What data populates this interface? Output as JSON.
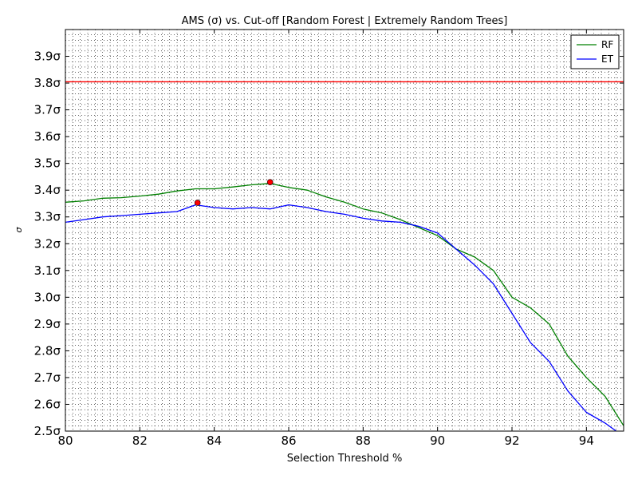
{
  "chart_data": {
    "type": "line",
    "title": "AMS (σ) vs. Cut-off [Random Forest | Extremely Random Trees]",
    "xlabel": "Selection Threshold %",
    "ylabel": "σ",
    "xlim": [
      80,
      95
    ],
    "ylim": [
      2.5,
      4.0
    ],
    "x_ticks": [
      80,
      82,
      84,
      86,
      88,
      90,
      92,
      94
    ],
    "x_tick_labels": [
      "80",
      "82",
      "84",
      "86",
      "88",
      "90",
      "92",
      "94"
    ],
    "y_ticks": [
      2.5,
      2.6,
      2.7,
      2.8,
      2.9,
      3.0,
      3.1,
      3.2,
      3.3,
      3.4,
      3.5,
      3.6,
      3.7,
      3.8,
      3.9
    ],
    "y_tick_labels": [
      "2.5σ",
      "2.6σ",
      "2.7σ",
      "2.8σ",
      "2.9σ",
      "3.0σ",
      "3.1σ",
      "3.2σ",
      "3.3σ",
      "3.4σ",
      "3.5σ",
      "3.6σ",
      "3.7σ",
      "3.8σ",
      "3.9σ"
    ],
    "grid": true,
    "legend_position": "top-right",
    "reference_line": {
      "y": 3.805,
      "color": "#ff0000"
    },
    "series": [
      {
        "name": "RF",
        "color": "#008000",
        "x": [
          80.0,
          80.5,
          81.0,
          81.5,
          82.0,
          82.5,
          83.0,
          83.5,
          84.0,
          84.5,
          85.0,
          85.5,
          86.0,
          86.5,
          87.0,
          87.5,
          88.0,
          88.5,
          89.0,
          89.5,
          90.0,
          90.5,
          91.0,
          91.5,
          92.0,
          92.5,
          93.0,
          93.5,
          94.0,
          94.5,
          95.0
        ],
        "values": [
          3.355,
          3.36,
          3.37,
          3.372,
          3.378,
          3.385,
          3.397,
          3.405,
          3.405,
          3.412,
          3.42,
          3.425,
          3.41,
          3.4,
          3.375,
          3.355,
          3.33,
          3.315,
          3.29,
          3.26,
          3.23,
          3.18,
          3.15,
          3.1,
          3.0,
          2.96,
          2.9,
          2.78,
          2.7,
          2.63,
          2.52
        ],
        "marker": {
          "x": 85.5,
          "y": 3.43
        }
      },
      {
        "name": "ET",
        "color": "#0000ff",
        "x": [
          80.0,
          80.5,
          81.0,
          81.5,
          82.0,
          82.5,
          83.0,
          83.5,
          84.0,
          84.5,
          85.0,
          85.5,
          86.0,
          86.5,
          87.0,
          87.5,
          88.0,
          88.5,
          89.0,
          89.5,
          90.0,
          90.5,
          91.0,
          91.5,
          92.0,
          92.5,
          93.0,
          93.5,
          94.0,
          94.5,
          94.8
        ],
        "values": [
          3.28,
          3.29,
          3.3,
          3.305,
          3.31,
          3.315,
          3.32,
          3.345,
          3.335,
          3.33,
          3.335,
          3.33,
          3.345,
          3.335,
          3.32,
          3.31,
          3.295,
          3.285,
          3.28,
          3.265,
          3.24,
          3.18,
          3.12,
          3.05,
          2.94,
          2.83,
          2.76,
          2.65,
          2.57,
          2.53,
          2.5
        ],
        "marker": {
          "x": 83.55,
          "y": 3.353
        }
      }
    ]
  }
}
